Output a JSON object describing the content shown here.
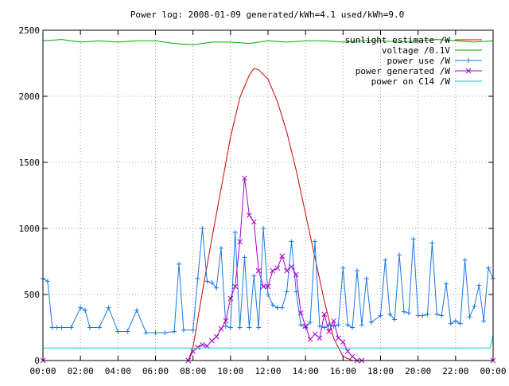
{
  "chart_data": {
    "type": "line",
    "title": "Power log: 2008-01-09 generated/kWh=4.1 used/kWh=9.0",
    "xlabel": "",
    "ylabel": "",
    "xlim": [
      "00:00",
      "24:00"
    ],
    "ylim": [
      0,
      2500
    ],
    "grid": true,
    "legend_position": "top-right",
    "x_ticks": [
      "00:00",
      "02:00",
      "04:00",
      "06:00",
      "08:00",
      "10:00",
      "12:00",
      "14:00",
      "16:00",
      "18:00",
      "20:00",
      "22:00",
      "00:00"
    ],
    "y_ticks": [
      0,
      500,
      1000,
      1500,
      2000,
      2500
    ],
    "series": [
      {
        "name": "sunlight estimate /W",
        "color": "#cc0000",
        "marker": "none",
        "x": [
          "07:45",
          "08:00",
          "08:30",
          "09:00",
          "09:30",
          "10:00",
          "10:30",
          "11:00",
          "11:15",
          "11:30",
          "12:00",
          "12:30",
          "13:00",
          "13:30",
          "14:00",
          "14:30",
          "15:00",
          "15:30",
          "16:00",
          "16:30",
          "17:00"
        ],
        "values": [
          0,
          100,
          520,
          920,
          1300,
          1690,
          1990,
          2160,
          2210,
          2200,
          2130,
          1960,
          1730,
          1440,
          1110,
          780,
          450,
          170,
          30,
          0,
          0
        ]
      },
      {
        "name": "voltage /0.1V",
        "color": "#00aa00",
        "marker": "none",
        "x": [
          "00:00",
          "01:00",
          "02:00",
          "03:00",
          "04:00",
          "05:00",
          "06:00",
          "07:00",
          "08:00",
          "09:00",
          "10:00",
          "11:00",
          "12:00",
          "13:00",
          "14:00",
          "15:00",
          "16:00",
          "17:00",
          "18:00",
          "19:00",
          "20:00",
          "21:00",
          "22:00",
          "23:00",
          "24:00"
        ],
        "values": [
          2420,
          2430,
          2410,
          2420,
          2410,
          2420,
          2420,
          2400,
          2390,
          2410,
          2410,
          2400,
          2420,
          2410,
          2420,
          2420,
          2410,
          2420,
          2420,
          2410,
          2420,
          2430,
          2420,
          2410,
          2420
        ]
      },
      {
        "name": "power use /W",
        "color": "#1a78e6",
        "marker": "plus",
        "x": [
          "00:00",
          "00:15",
          "00:30",
          "00:45",
          "01:00",
          "01:30",
          "02:00",
          "02:15",
          "02:30",
          "03:00",
          "03:30",
          "04:00",
          "04:30",
          "05:00",
          "05:30",
          "06:00",
          "06:30",
          "07:00",
          "07:15",
          "07:30",
          "08:00",
          "08:15",
          "08:30",
          "08:45",
          "09:00",
          "09:15",
          "09:30",
          "09:45",
          "10:00",
          "10:15",
          "10:30",
          "10:45",
          "11:00",
          "11:15",
          "11:30",
          "11:45",
          "12:00",
          "12:15",
          "12:30",
          "12:45",
          "13:00",
          "13:15",
          "13:30",
          "13:45",
          "14:00",
          "14:15",
          "14:30",
          "14:45",
          "15:00",
          "15:15",
          "15:30",
          "15:45",
          "16:00",
          "16:15",
          "16:30",
          "16:45",
          "17:00",
          "17:15",
          "17:30",
          "18:00",
          "18:15",
          "18:30",
          "18:45",
          "19:00",
          "19:15",
          "19:30",
          "19:45",
          "20:00",
          "20:15",
          "20:30",
          "20:45",
          "21:00",
          "21:15",
          "21:30",
          "21:45",
          "22:00",
          "22:15",
          "22:30",
          "22:45",
          "23:00",
          "23:15",
          "23:30",
          "23:45",
          "24:00"
        ],
        "values": [
          620,
          600,
          250,
          250,
          250,
          250,
          400,
          380,
          250,
          250,
          400,
          220,
          220,
          380,
          210,
          210,
          210,
          220,
          730,
          230,
          230,
          620,
          1000,
          600,
          590,
          550,
          850,
          260,
          250,
          970,
          250,
          780,
          250,
          640,
          250,
          1000,
          500,
          420,
          400,
          400,
          520,
          900,
          520,
          270,
          250,
          290,
          900,
          260,
          250,
          270,
          260,
          270,
          700,
          270,
          250,
          680,
          270,
          620,
          290,
          340,
          760,
          350,
          310,
          800,
          370,
          360,
          920,
          340,
          340,
          350,
          890,
          350,
          340,
          580,
          280,
          300,
          280,
          760,
          330,
          410,
          570,
          300,
          700,
          620
        ]
      },
      {
        "name": "power generated /W",
        "color": "#aa00cc",
        "marker": "cross",
        "x": [
          "00:00",
          "07:45",
          "08:00",
          "08:15",
          "08:30",
          "08:45",
          "09:00",
          "09:15",
          "09:30",
          "09:45",
          "10:00",
          "10:15",
          "10:30",
          "10:45",
          "11:00",
          "11:15",
          "11:30",
          "11:45",
          "12:00",
          "12:15",
          "12:30",
          "12:45",
          "13:00",
          "13:15",
          "13:30",
          "13:45",
          "14:00",
          "14:15",
          "14:30",
          "14:45",
          "15:00",
          "15:15",
          "15:30",
          "15:45",
          "16:00",
          "16:15",
          "16:30",
          "16:45",
          "17:00",
          "24:00"
        ],
        "values": [
          0,
          0,
          70,
          100,
          120,
          110,
          150,
          180,
          240,
          300,
          470,
          560,
          900,
          1380,
          1100,
          1050,
          680,
          560,
          560,
          680,
          700,
          790,
          680,
          710,
          650,
          360,
          260,
          160,
          200,
          170,
          350,
          220,
          300,
          170,
          140,
          70,
          30,
          0,
          0,
          0
        ]
      },
      {
        "name": "power on C14 /W",
        "color": "#00cccc",
        "marker": "none",
        "x": [
          "00:00",
          "02:00",
          "04:00",
          "06:00",
          "08:00",
          "10:00",
          "12:00",
          "14:00",
          "16:00",
          "18:00",
          "20:00",
          "22:00",
          "23:50",
          "24:00"
        ],
        "values": [
          95,
          95,
          95,
          95,
          95,
          95,
          95,
          95,
          95,
          95,
          95,
          95,
          95,
          190
        ]
      }
    ]
  }
}
